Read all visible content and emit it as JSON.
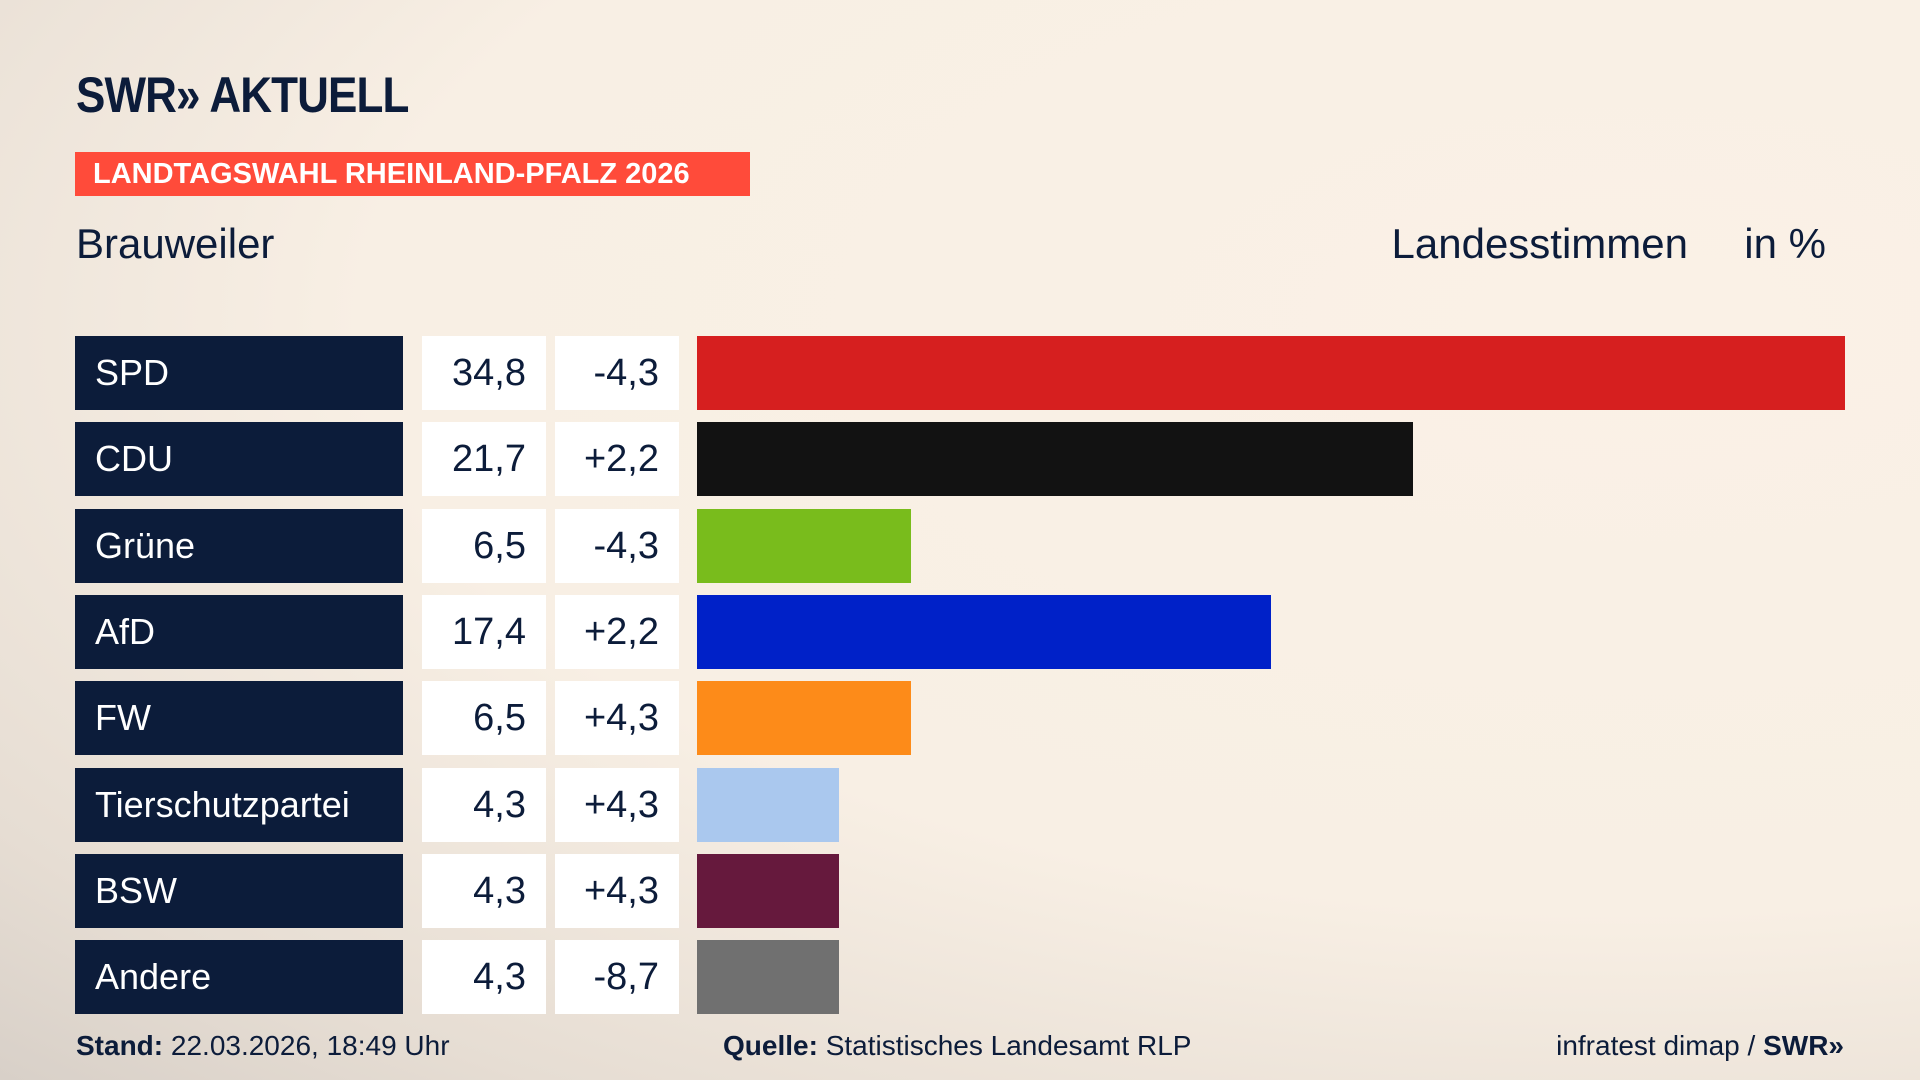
{
  "header": {
    "logo": "SWR» AKTUELL",
    "tag": "LANDTAGSWAHL RHEINLAND-PFALZ 2026",
    "place": "Brauweiler",
    "measure": "Landesstimmen",
    "unit": "in %"
  },
  "chart_data": {
    "type": "bar",
    "orientation": "horizontal",
    "categories": [
      "SPD",
      "CDU",
      "Grüne",
      "AfD",
      "FW",
      "Tierschutzpartei",
      "BSW",
      "Andere"
    ],
    "values": [
      34.8,
      21.7,
      6.5,
      17.4,
      6.5,
      4.3,
      4.3,
      4.3
    ],
    "value_labels": [
      "34,8",
      "21,7",
      "6,5",
      "17,4",
      "6,5",
      "4,3",
      "4,3",
      "4,3"
    ],
    "diffs": [
      "-4,3",
      "+2,2",
      "-4,3",
      "+2,2",
      "+4,3",
      "+4,3",
      "+4,3",
      "-8,7"
    ],
    "colors": [
      "#d61f1f",
      "#121212",
      "#79bc1c",
      "#0021c8",
      "#fd8b19",
      "#aac8ee",
      "#66193d",
      "#707070"
    ],
    "xlim": [
      0,
      34.8
    ]
  },
  "footer": {
    "stand_label": "Stand:",
    "stand": "22.03.2026, 18:49 Uhr",
    "source_label": "Quelle:",
    "source": "Statistisches Landesamt RLP",
    "credit": "infratest dimap / ",
    "credit_logo": "SWR»"
  }
}
